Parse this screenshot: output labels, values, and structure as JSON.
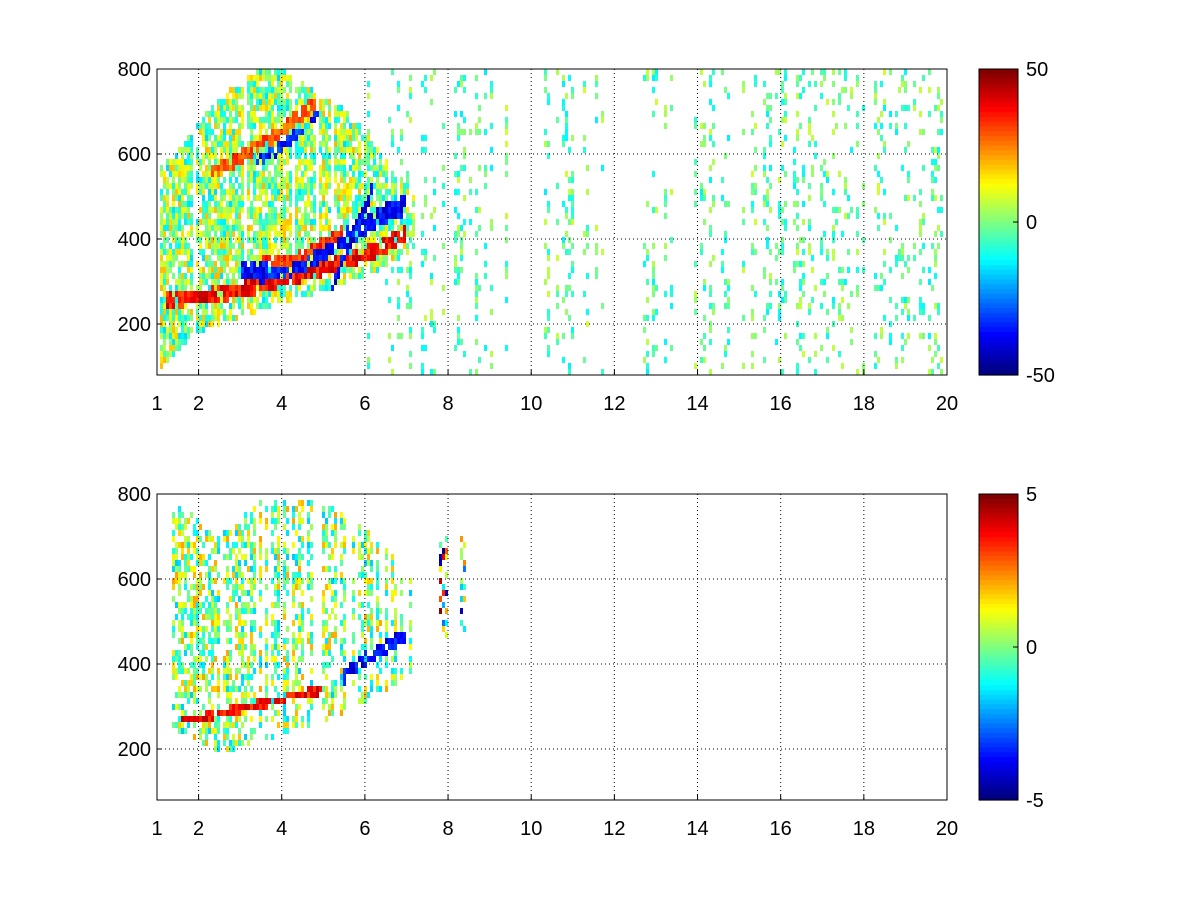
{
  "chart_data": [
    {
      "type": "heatmap",
      "title": "",
      "xlabel": "",
      "ylabel": "",
      "xlim": [
        1,
        20
      ],
      "ylim": [
        80,
        800
      ],
      "xticks": [
        1,
        2,
        4,
        6,
        8,
        10,
        12,
        14,
        16,
        18,
        20
      ],
      "yticks": [
        200,
        400,
        600,
        800
      ],
      "grid": true,
      "colormap": "jet",
      "clim": [
        -50,
        50
      ],
      "colorbar_ticks": [
        50,
        0,
        -50
      ],
      "features": [
        {
          "kind": "curve",
          "x": [
            1.2,
            2.0,
            2.5,
            3.0,
            3.5,
            4.0,
            4.5,
            5.0,
            5.5,
            6.0,
            6.5,
            7.0
          ],
          "y": [
            258,
            262,
            270,
            280,
            292,
            305,
            318,
            330,
            345,
            362,
            385,
            415
          ],
          "value": 45,
          "width": 18
        },
        {
          "kind": "curve",
          "x": [
            3.0,
            3.5,
            4.0,
            4.5,
            5.0,
            5.5,
            6.0,
            6.5,
            7.0
          ],
          "y": [
            330,
            320,
            325,
            345,
            370,
            400,
            430,
            460,
            480
          ],
          "value": -45,
          "width": 22
        },
        {
          "kind": "curve",
          "x": [
            3.5,
            4.0,
            4.5,
            5.0,
            5.5
          ],
          "y": [
            360,
            345,
            360,
            390,
            420
          ],
          "value": 40,
          "width": 12
        },
        {
          "kind": "curve",
          "x": [
            2.3,
            2.8,
            3.3,
            3.8,
            4.3,
            4.8
          ],
          "y": [
            560,
            580,
            610,
            640,
            680,
            720
          ],
          "value": 35,
          "width": 16
        },
        {
          "kind": "curve",
          "x": [
            3.4,
            3.9,
            4.4,
            4.9
          ],
          "y": [
            580,
            610,
            650,
            700
          ],
          "value": -40,
          "width": 12
        },
        {
          "kind": "curve",
          "x": [
            5.2,
            5.5,
            5.8,
            6.2
          ],
          "y": [
            280,
            360,
            430,
            520
          ],
          "value": -48,
          "width": 14
        }
      ],
      "region": {
        "start_x": 1.0,
        "end_x": 7.2,
        "upper_y": [
          560,
          620,
          700,
          760,
          800,
          800,
          750,
          700,
          600,
          500
        ],
        "upper_x": [
          1.0,
          1.6,
          2.2,
          2.8,
          3.4,
          4.0,
          4.8,
          5.6,
          6.4,
          7.2
        ],
        "lower_y": [
          80,
          150,
          190,
          210,
          230,
          250,
          270,
          300,
          330,
          380
        ],
        "noise_amp": 18
      },
      "sparse": {
        "from_x": 6.0,
        "to_x": 20.0,
        "value_range": [
          -14,
          8
        ],
        "empty_bands": [
          [
            9.6,
            10.2
          ],
          [
            11.8,
            12.6
          ],
          [
            13.6,
            13.9
          ]
        ]
      }
    },
    {
      "type": "heatmap",
      "title": "",
      "xlabel": "",
      "ylabel": "",
      "xlim": [
        1,
        20
      ],
      "ylim": [
        80,
        800
      ],
      "xticks": [
        1,
        2,
        4,
        6,
        8,
        10,
        12,
        14,
        16,
        18,
        20
      ],
      "yticks": [
        200,
        400,
        600,
        800
      ],
      "grid": true,
      "colormap": "jet",
      "clim": [
        -5,
        5
      ],
      "colorbar_ticks": [
        5,
        0,
        -5
      ],
      "features": [
        {
          "kind": "curve",
          "x": [
            1.6,
            2.0,
            2.5,
            3.0,
            3.5,
            4.0,
            4.5,
            5.0
          ],
          "y": [
            268,
            272,
            282,
            295,
            305,
            315,
            328,
            340
          ],
          "value": 4.5,
          "width": 10
        },
        {
          "kind": "curve",
          "x": [
            5.5,
            6.0,
            6.5,
            7.0
          ],
          "y": [
            370,
            410,
            440,
            470
          ],
          "value": -4.5,
          "width": 16
        }
      ],
      "region": {
        "start_x": 1.3,
        "end_x": 7.2,
        "upper_y": [
          770,
          760,
          700,
          740,
          790,
          790,
          780,
          760,
          700,
          600
        ],
        "upper_x": [
          1.3,
          1.8,
          2.4,
          3.0,
          3.6,
          4.2,
          4.8,
          5.4,
          6.2,
          7.2
        ],
        "lower_y": [
          250,
          230,
          200,
          200,
          220,
          240,
          260,
          280,
          320,
          380
        ],
        "noise_amp": 2.0
      },
      "clusters": [
        {
          "x": [
            7.8,
            8.0
          ],
          "y": [
            460,
            700
          ]
        },
        {
          "x": [
            8.3,
            8.45
          ],
          "y": [
            470,
            700
          ]
        }
      ]
    }
  ]
}
